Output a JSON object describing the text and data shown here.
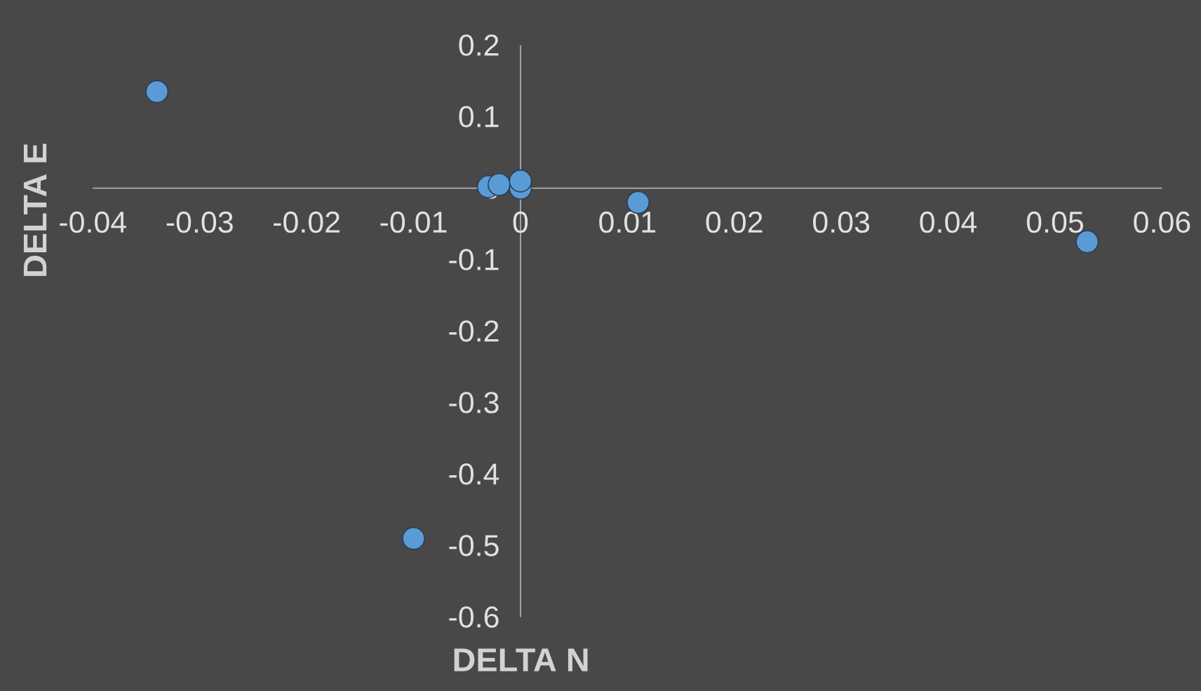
{
  "chart_data": {
    "type": "scatter",
    "xlabel": "DELTA N",
    "ylabel": "DELTA E",
    "series": [
      {
        "color": "#5b9bd5",
        "x": [
          -0.034,
          -0.01,
          0.011,
          0.053,
          -0.003,
          -0.002,
          0,
          0
        ],
        "values": [
          0.135,
          -0.49,
          -0.02,
          -0.075,
          0.002,
          0.005,
          0,
          0.01
        ]
      }
    ],
    "xlim": [
      -0.04,
      0.06
    ],
    "ylim": [
      -0.6,
      0.2
    ],
    "xticks": [
      -0.04,
      -0.03,
      -0.02,
      -0.01,
      0,
      0.01,
      0.02,
      0.03,
      0.04,
      0.05,
      0.06
    ],
    "yticks": [
      -0.6,
      -0.5,
      -0.4,
      -0.3,
      -0.2,
      -0.1,
      0,
      0.1,
      0.2
    ]
  }
}
